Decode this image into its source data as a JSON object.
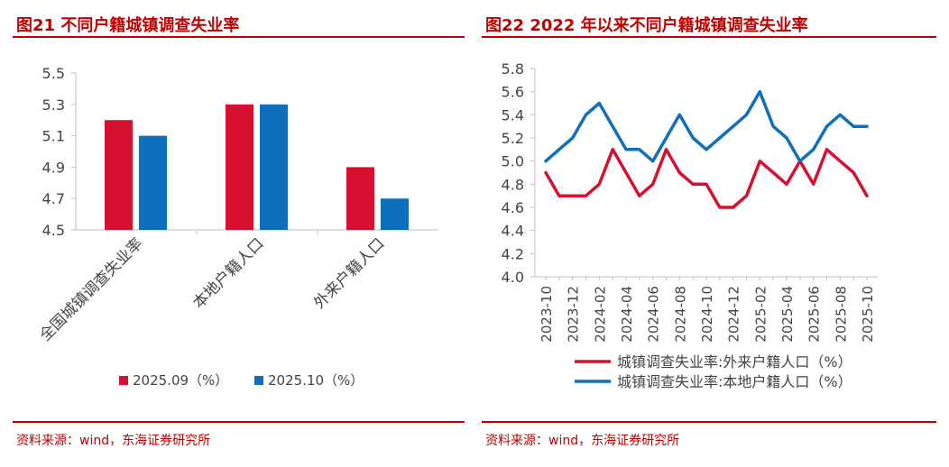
{
  "source_text": "资料来源：wind，东海证券研究所",
  "colors": {
    "title_red": "#c00000",
    "series_red": "#d7102f",
    "series_blue": "#0f6fba"
  },
  "chart_data": [
    {
      "type": "bar",
      "title": "图21  不同户籍城镇调查失业率",
      "categories": [
        "全国城镇调查失业率",
        "本地户籍人口",
        "外来户籍人口"
      ],
      "series": [
        {
          "name": "2025.09（%）",
          "values": [
            5.2,
            5.3,
            4.9
          ]
        },
        {
          "name": "2025.10（%）",
          "values": [
            5.1,
            5.3,
            4.7
          ]
        }
      ],
      "ylim": [
        4.5,
        5.5
      ],
      "yticks": [
        "4.5",
        "4.7",
        "4.9",
        "5.1",
        "5.3",
        "5.5"
      ],
      "legend": "bottom"
    },
    {
      "type": "line",
      "title": "图22  2022 年以来不同户籍城镇调查失业率",
      "x": [
        "2023-10",
        "2023-11",
        "2023-12",
        "2024-01",
        "2024-02",
        "2024-03",
        "2024-04",
        "2024-05",
        "2024-06",
        "2024-07",
        "2024-08",
        "2024-09",
        "2024-10",
        "2024-11",
        "2024-12",
        "2025-01",
        "2025-02",
        "2025-03",
        "2025-04",
        "2025-05",
        "2025-06",
        "2025-07",
        "2025-08",
        "2025-09",
        "2025-10"
      ],
      "xticks": [
        "2023-10",
        "2023-12",
        "2024-02",
        "2024-04",
        "2024-06",
        "2024-08",
        "2024-10",
        "2024-12",
        "2025-02",
        "2025-04",
        "2025-06",
        "2025-08",
        "2025-10"
      ],
      "series": [
        {
          "name": "城镇调查失业率:外来户籍人口（%）",
          "values": [
            4.9,
            4.7,
            4.7,
            4.7,
            4.8,
            5.1,
            4.9,
            4.7,
            4.8,
            5.1,
            4.9,
            4.8,
            4.8,
            4.6,
            4.6,
            4.7,
            5.0,
            4.9,
            4.8,
            5.0,
            4.8,
            5.1,
            5.0,
            4.9,
            4.7
          ]
        },
        {
          "name": "城镇调查失业率:本地户籍人口（%）",
          "values": [
            5.0,
            5.1,
            5.2,
            5.4,
            5.5,
            5.3,
            5.1,
            5.1,
            5.0,
            5.2,
            5.4,
            5.2,
            5.1,
            5.2,
            5.3,
            5.4,
            5.6,
            5.3,
            5.2,
            5.0,
            5.1,
            5.3,
            5.4,
            5.3,
            5.3
          ]
        }
      ],
      "ylim": [
        4.0,
        5.8
      ],
      "yticks": [
        "4.0",
        "4.2",
        "4.4",
        "4.6",
        "4.8",
        "5.0",
        "5.2",
        "5.4",
        "5.6",
        "5.8"
      ],
      "legend": "bottom"
    }
  ]
}
